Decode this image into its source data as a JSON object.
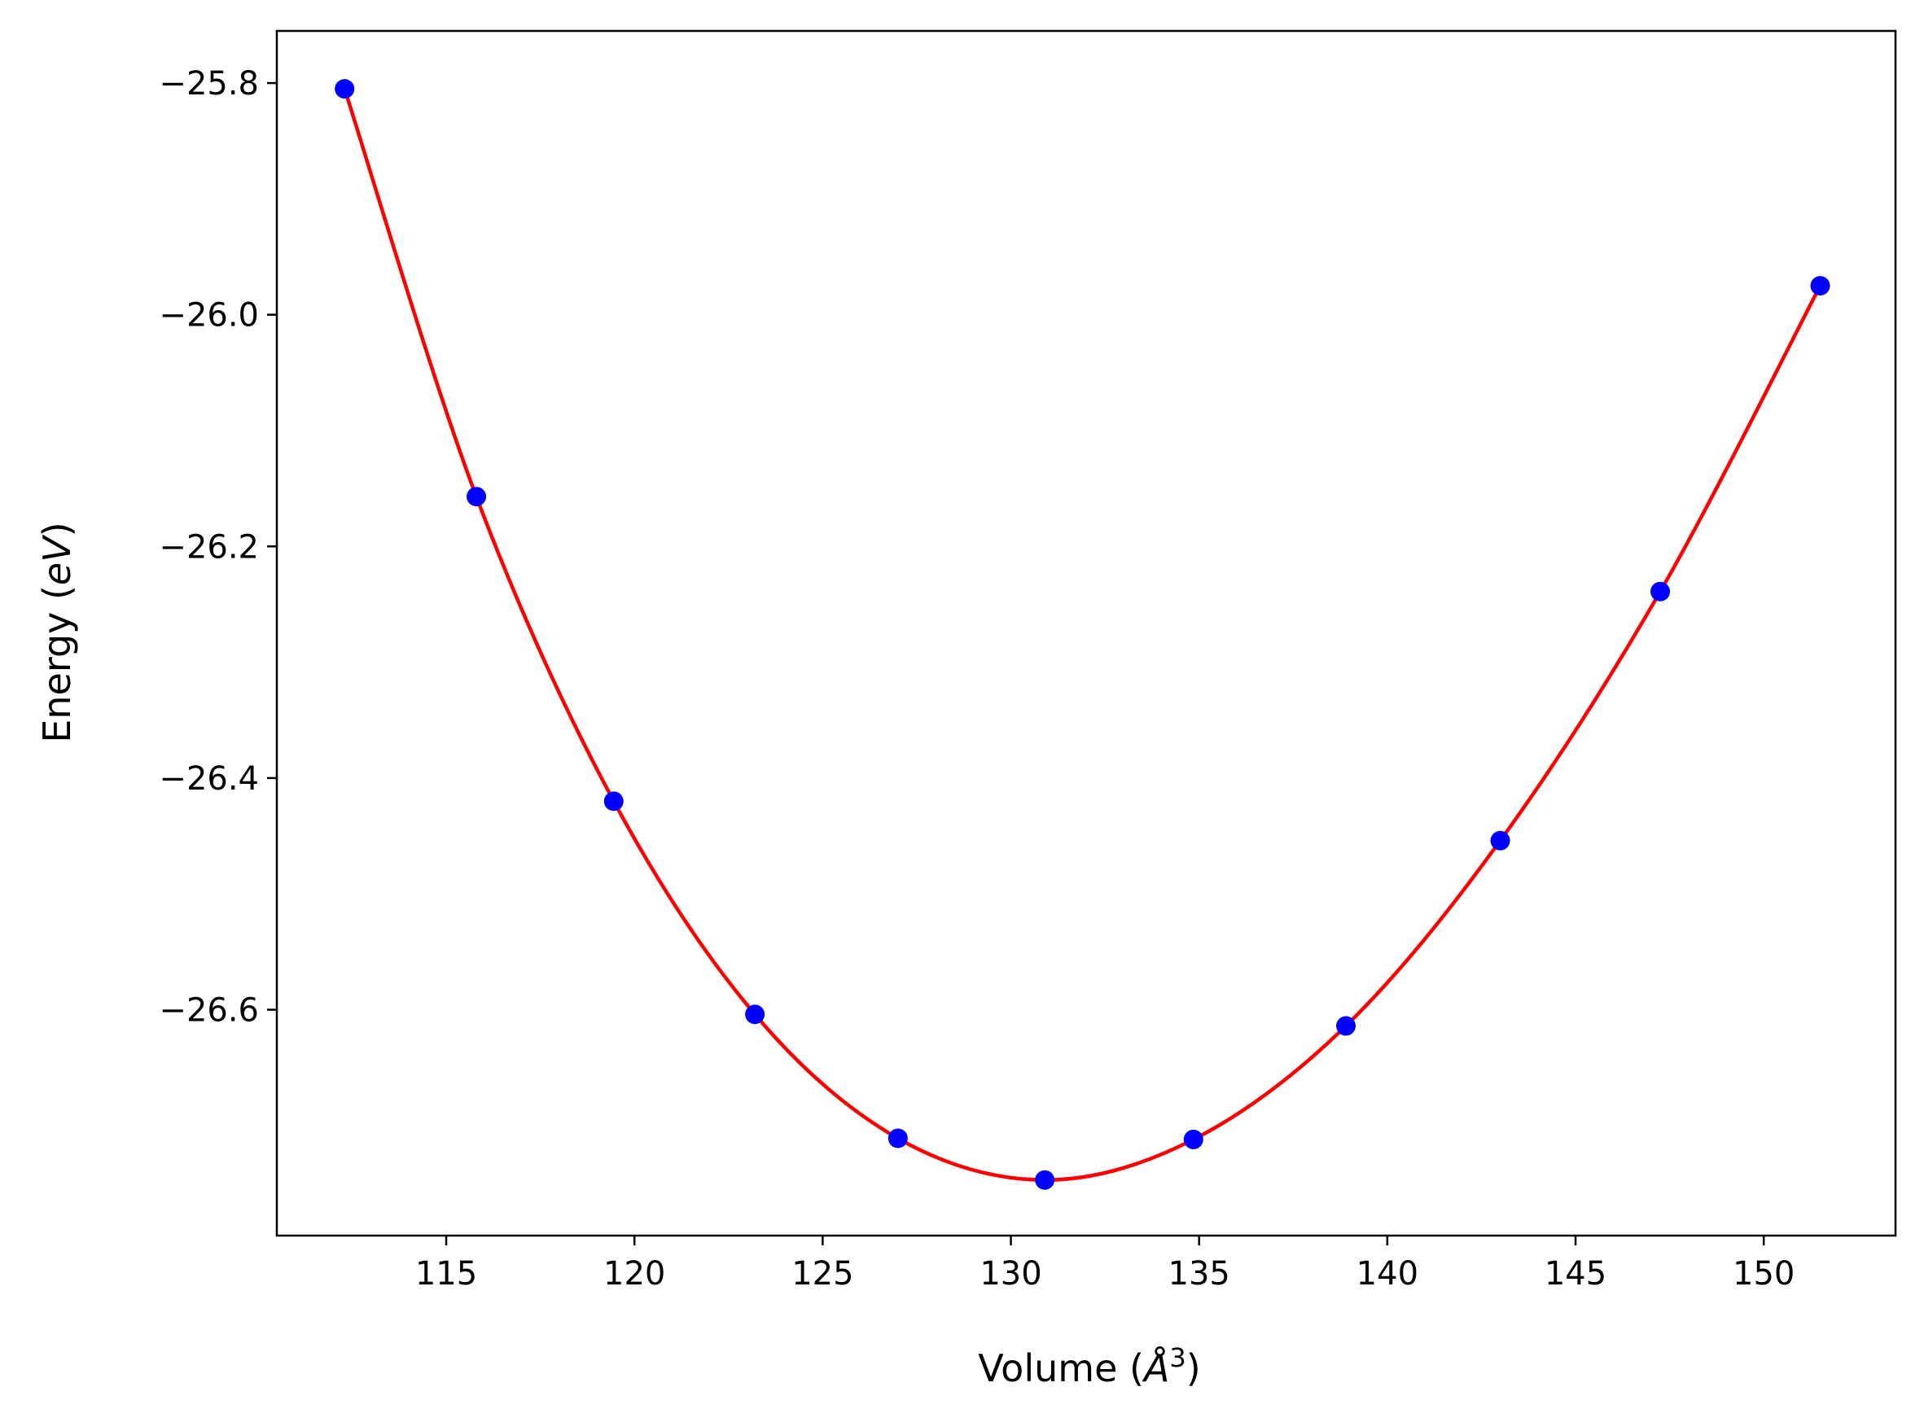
{
  "chart_data": {
    "type": "scatter",
    "title": "",
    "xlabel_text": "Volume (",
    "xlabel_unit": "Å",
    "xlabel_sup": "3",
    "xlabel_close": ")",
    "ylabel_text": "Energy (",
    "ylabel_unit": "eV",
    "ylabel_close": ")",
    "xlim": [
      110.5,
      153.5
    ],
    "ylim": [
      -26.795,
      -25.755
    ],
    "xticks": [
      115,
      120,
      125,
      130,
      135,
      140,
      145,
      150
    ],
    "xtick_labels": [
      "115",
      "120",
      "125",
      "130",
      "135",
      "140",
      "145",
      "150"
    ],
    "yticks": [
      -25.8,
      -26.0,
      -26.2,
      -26.4,
      -26.6
    ],
    "ytick_labels": [
      "−25.8",
      "−26.0",
      "−26.2",
      "−26.4",
      "−26.6"
    ],
    "grid": false,
    "legend": "none",
    "series": [
      {
        "kind": "points",
        "color": "#0000ff",
        "x": [
          112.3,
          115.8,
          119.45,
          123.2,
          127.0,
          130.9,
          134.85,
          138.9,
          143.0,
          147.25,
          151.5
        ],
        "y": [
          -25.805,
          -26.157,
          -26.42,
          -26.604,
          -26.711,
          -26.747,
          -26.712,
          -26.614,
          -26.454,
          -26.239,
          -25.975
        ]
      },
      {
        "kind": "fit",
        "color": "#ff0000",
        "x": [
          112.3,
          115.8,
          119.45,
          123.2,
          127.0,
          130.9,
          134.85,
          138.9,
          143.0,
          147.25,
          151.5
        ],
        "y": [
          -25.805,
          -26.157,
          -26.42,
          -26.604,
          -26.711,
          -26.747,
          -26.712,
          -26.614,
          -26.454,
          -26.239,
          -25.975
        ]
      }
    ]
  }
}
